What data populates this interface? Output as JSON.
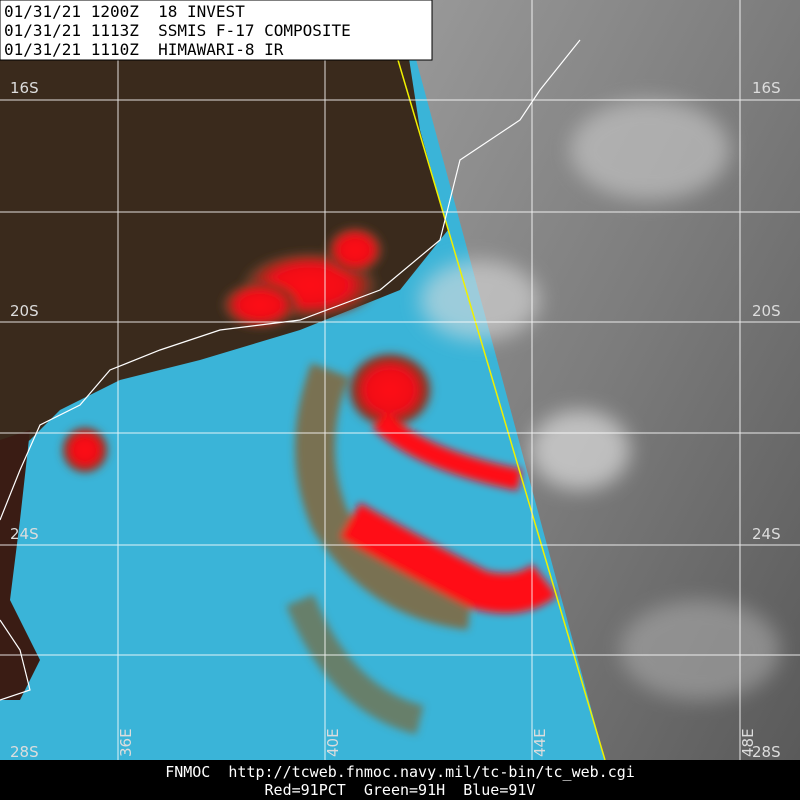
{
  "header": {
    "lines": [
      "01/31/21 1200Z  18 INVEST",
      "01/31/21 1113Z  SSMIS F-17 COMPOSITE",
      "01/31/21 1110Z  HIMAWARI-8 IR"
    ]
  },
  "latitude_labels": [
    "16S",
    "20S",
    "24S",
    "28S"
  ],
  "longitude_labels": [
    "36E",
    "40E",
    "44E",
    "48E"
  ],
  "footer": {
    "source": "FNMOC  http://tcweb.fnmoc.navy.mil/tc-bin/tc_web.cgi",
    "channels": "Red=91PCT  Green=91H  Blue=91V"
  }
}
